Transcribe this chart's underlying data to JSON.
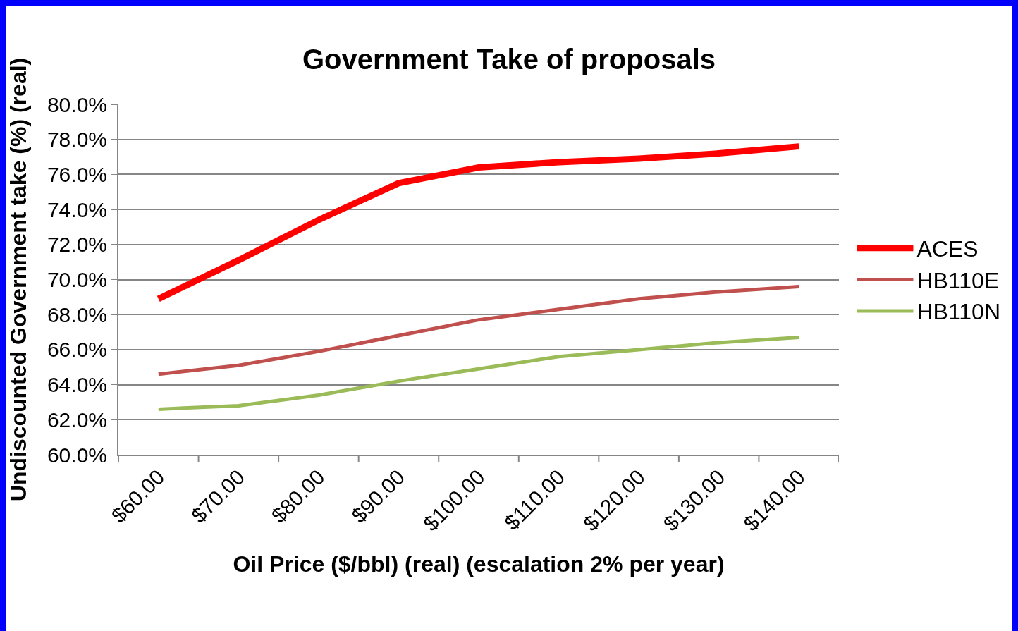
{
  "chart_data": {
    "type": "line",
    "title": "Government Take of proposals",
    "xlabel": "Oil Price ($/bbl) (real) (escalation 2% per year)",
    "ylabel": "Undiscounted Government take (%) (real)",
    "categories": [
      "$60.00",
      "$70.00",
      "$80.00",
      "$90.00",
      "$100.00",
      "$110.00",
      "$120.00",
      "$130.00",
      "$140.00"
    ],
    "series": [
      {
        "name": "ACES",
        "color": "#ff0000",
        "values": [
          68.9,
          71.1,
          73.4,
          75.5,
          76.4,
          76.7,
          76.9,
          77.2,
          77.6
        ]
      },
      {
        "name": "HB110E",
        "color": "#c0504d",
        "values": [
          64.6,
          65.1,
          65.9,
          66.8,
          67.7,
          68.3,
          68.9,
          69.3,
          69.6
        ]
      },
      {
        "name": "HB110N",
        "color": "#9bbb59",
        "values": [
          62.6,
          62.8,
          63.4,
          64.2,
          64.9,
          65.6,
          66.0,
          66.4,
          66.7
        ]
      }
    ],
    "ylim": [
      60,
      80
    ],
    "yticks": [
      {
        "value": 60,
        "label": "60.0%"
      },
      {
        "value": 62,
        "label": "62.0%"
      },
      {
        "value": 64,
        "label": "64.0%"
      },
      {
        "value": 66,
        "label": "66.0%"
      },
      {
        "value": 68,
        "label": "68.0%"
      },
      {
        "value": 70,
        "label": "70.0%"
      },
      {
        "value": 72,
        "label": "72.0%"
      },
      {
        "value": 74,
        "label": "74.0%"
      },
      {
        "value": 76,
        "label": "76.0%"
      },
      {
        "value": 78,
        "label": "78.0%"
      },
      {
        "value": 80,
        "label": "80.0%"
      }
    ],
    "grid": "y",
    "legend": "right",
    "marker": "none",
    "line_style": "solid"
  }
}
